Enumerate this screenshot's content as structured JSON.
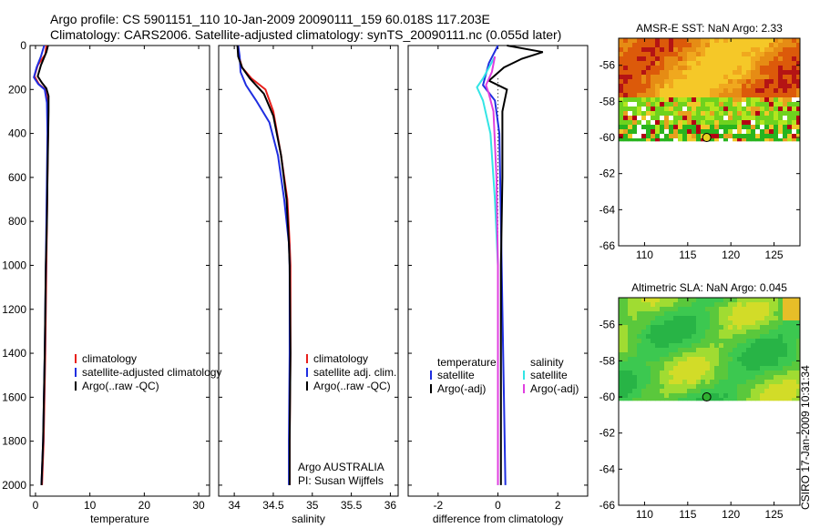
{
  "header": {
    "line1": "Argo profile: CS 5901151_110 10-Jan-2009 20090111_159 60.018S 117.203E",
    "line2": "Climatology: CARS2006. Satellite-adjusted climatology: synTS_20090111.nc (0.055d later)"
  },
  "side_label": "CSIRO 17-Jan-2009 10:31:34",
  "colors": {
    "clim": "#e8201c",
    "sat": "#1f2ee0",
    "argo": "#000000",
    "cyan": "#33e5e5",
    "magenta": "#e040e0"
  },
  "chart_data": [
    {
      "id": "temperature",
      "type": "line",
      "xlabel": "temperature",
      "ylim": [
        0,
        2050
      ],
      "xlim": [
        -1,
        32
      ],
      "xticks": [
        0,
        10,
        20,
        30
      ],
      "yticks": [
        0,
        200,
        400,
        600,
        800,
        1000,
        1200,
        1400,
        1600,
        1800,
        2000
      ],
      "legend": [
        "climatology",
        "satellite-adjusted climatology",
        "Argo(..raw -QC)"
      ],
      "series": [
        {
          "name": "climatology",
          "role": "clim",
          "points": [
            [
              2.0,
              0
            ],
            [
              1.8,
              40
            ],
            [
              0.4,
              90
            ],
            [
              -0.2,
              140
            ],
            [
              0.6,
              175
            ],
            [
              1.8,
              200
            ],
            [
              2.3,
              260
            ],
            [
              2.3,
              400
            ],
            [
              2.2,
              600
            ],
            [
              2.1,
              800
            ],
            [
              2.0,
              1000
            ],
            [
              1.8,
              1400
            ],
            [
              1.5,
              1800
            ],
            [
              1.2,
              2000
            ]
          ]
        },
        {
          "name": "satellite-adjusted climatology",
          "role": "sat",
          "points": [
            [
              1.6,
              0
            ],
            [
              1.0,
              50
            ],
            [
              0.2,
              100
            ],
            [
              -0.3,
              145
            ],
            [
              0.5,
              175
            ],
            [
              1.7,
              200
            ],
            [
              2.1,
              260
            ],
            [
              2.2,
              400
            ],
            [
              2.1,
              600
            ],
            [
              2.0,
              800
            ],
            [
              1.9,
              1000
            ],
            [
              1.7,
              1400
            ],
            [
              1.4,
              1800
            ],
            [
              1.1,
              2000
            ]
          ]
        },
        {
          "name": "Argo(..raw -QC)",
          "role": "argo",
          "points": [
            [
              2.3,
              0
            ],
            [
              2.0,
              30
            ],
            [
              1.0,
              90
            ],
            [
              0.4,
              140
            ],
            [
              1.2,
              170
            ],
            [
              2.0,
              195
            ],
            [
              2.4,
              230
            ],
            [
              2.4,
              300
            ],
            [
              2.3,
              450
            ],
            [
              2.2,
              600
            ],
            [
              2.1,
              800
            ],
            [
              1.9,
              1000
            ],
            [
              1.7,
              1400
            ],
            [
              1.4,
              1800
            ],
            [
              1.1,
              2000
            ]
          ]
        }
      ]
    },
    {
      "id": "salinity",
      "type": "line",
      "xlabel": "salinity",
      "ylim": [
        0,
        2050
      ],
      "xlim": [
        33.8,
        36.1
      ],
      "xticks": [
        34,
        34.5,
        35,
        35.5,
        36
      ],
      "xticklabels": [
        "34",
        "34.5",
        "35",
        "35.5",
        "36"
      ],
      "yticks": [
        0,
        200,
        400,
        600,
        800,
        1000,
        1200,
        1400,
        1600,
        1800,
        2000
      ],
      "legend": [
        "climatology",
        "satellite adj. clim.",
        "Argo(..raw -QC)"
      ],
      "annotation": [
        "Argo AUSTRALIA",
        "PI: Susan Wijffels"
      ],
      "series": [
        {
          "name": "climatology",
          "role": "clim",
          "points": [
            [
              34.05,
              0
            ],
            [
              34.06,
              50
            ],
            [
              34.1,
              100
            ],
            [
              34.22,
              150
            ],
            [
              34.4,
              200
            ],
            [
              34.5,
              300
            ],
            [
              34.6,
              500
            ],
            [
              34.68,
              700
            ],
            [
              34.71,
              900
            ],
            [
              34.72,
              1000
            ],
            [
              34.72,
              1400
            ],
            [
              34.71,
              1800
            ],
            [
              34.71,
              2000
            ]
          ]
        },
        {
          "name": "satellite adj. clim.",
          "role": "sat",
          "points": [
            [
              34.05,
              0
            ],
            [
              34.07,
              50
            ],
            [
              34.08,
              120
            ],
            [
              34.15,
              180
            ],
            [
              34.28,
              250
            ],
            [
              34.45,
              350
            ],
            [
              34.56,
              500
            ],
            [
              34.64,
              700
            ],
            [
              34.7,
              900
            ],
            [
              34.71,
              1000
            ],
            [
              34.71,
              1400
            ],
            [
              34.7,
              1800
            ],
            [
              34.7,
              2000
            ]
          ]
        },
        {
          "name": "Argo(..raw -QC)",
          "role": "argo",
          "points": [
            [
              34.04,
              0
            ],
            [
              34.05,
              50
            ],
            [
              34.1,
              100
            ],
            [
              34.2,
              150
            ],
            [
              34.38,
              220
            ],
            [
              34.5,
              320
            ],
            [
              34.6,
              500
            ],
            [
              34.67,
              700
            ],
            [
              34.7,
              900
            ],
            [
              34.71,
              1000
            ],
            [
              34.72,
              1400
            ],
            [
              34.71,
              1800
            ],
            [
              34.71,
              2000
            ]
          ]
        }
      ]
    },
    {
      "id": "difference",
      "type": "line",
      "xlabel": "difference from climatology",
      "ylim": [
        0,
        2050
      ],
      "xlim": [
        -3,
        3
      ],
      "xticks": [
        -2,
        0,
        2
      ],
      "yticks": [
        0,
        200,
        400,
        600,
        800,
        1000,
        1200,
        1400,
        1600,
        1800,
        2000
      ],
      "legend_headers": [
        "temperature",
        "salinity"
      ],
      "legend_left": [
        "satellite",
        "Argo(-adj)"
      ],
      "legend_right": [
        "satellite",
        "Argo(-adj)"
      ],
      "series": [
        {
          "name": "temperature satellite",
          "role": "sat",
          "points": [
            [
              0,
              0
            ],
            [
              -0.3,
              80
            ],
            [
              -0.5,
              180
            ],
            [
              -0.1,
              250
            ],
            [
              0.05,
              400
            ],
            [
              0.1,
              800
            ],
            [
              0.15,
              1200
            ],
            [
              0.2,
              1600
            ],
            [
              0.25,
              2000
            ]
          ]
        },
        {
          "name": "temperature Argo(-adj)",
          "role": "argo",
          "points": [
            [
              0.3,
              0
            ],
            [
              1.5,
              30
            ],
            [
              0.8,
              60
            ],
            [
              0.2,
              100
            ],
            [
              -0.3,
              160
            ],
            [
              0.3,
              200
            ],
            [
              0.15,
              300
            ],
            [
              0.15,
              600
            ],
            [
              0.1,
              1000
            ],
            [
              0.1,
              1500
            ],
            [
              0.1,
              2000
            ]
          ]
        },
        {
          "name": "salinity satellite",
          "role": "cyan",
          "points": [
            [
              -0.1,
              50
            ],
            [
              -0.5,
              150
            ],
            [
              -0.7,
              190
            ],
            [
              -0.5,
              250
            ],
            [
              -0.25,
              400
            ],
            [
              -0.1,
              700
            ],
            [
              0,
              1000
            ],
            [
              0,
              2000
            ]
          ]
        },
        {
          "name": "salinity Argo(-adj)",
          "role": "magenta",
          "points": [
            [
              -0.1,
              50
            ],
            [
              -0.2,
              120
            ],
            [
              -0.4,
              180
            ],
            [
              -0.3,
              220
            ],
            [
              -0.15,
              300
            ],
            [
              -0.05,
              600
            ],
            [
              0,
              1000
            ],
            [
              0,
              2000
            ]
          ]
        }
      ]
    },
    {
      "id": "sst_map",
      "type": "heatmap",
      "title": "AMSR-E SST: NaN Argo: 2.33",
      "xlim": [
        107,
        128
      ],
      "ylim": [
        -66,
        -54.5
      ],
      "xticks": [
        110,
        115,
        120,
        125
      ],
      "yticks": [
        -56,
        -58,
        -60,
        -62,
        -64,
        -66
      ],
      "float_position": [
        117.2,
        -60.0
      ],
      "data_region_ylim": [
        -60.2,
        -54.5
      ]
    },
    {
      "id": "sla_map",
      "type": "heatmap",
      "title": "Altimetric SLA: NaN Argo: 0.045",
      "xlim": [
        107,
        128
      ],
      "ylim": [
        -66,
        -54.5
      ],
      "xticks": [
        110,
        115,
        120,
        125
      ],
      "yticks": [
        -56,
        -58,
        -60,
        -62,
        -64,
        -66
      ],
      "float_position": [
        117.2,
        -60.0
      ],
      "data_region_ylim": [
        -60.2,
        -54.5
      ]
    }
  ]
}
